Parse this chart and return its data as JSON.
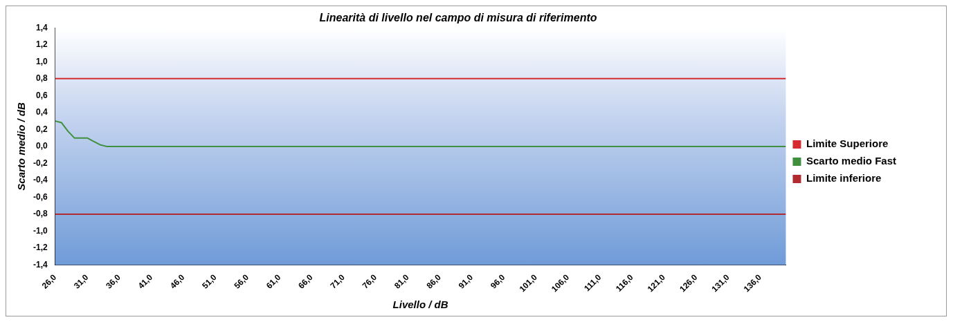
{
  "chart_data": {
    "type": "line",
    "title": "Linearità di livello nel campo di misura di riferimento",
    "xlabel": "Livello / dB",
    "ylabel": "Scarto medio / dB",
    "xlim": [
      26,
      140
    ],
    "xticks": [
      {
        "value": 26,
        "label": "26,0"
      },
      {
        "value": 31,
        "label": "31,0"
      },
      {
        "value": 36,
        "label": "36,0"
      },
      {
        "value": 41,
        "label": "41,0"
      },
      {
        "value": 46,
        "label": "46,0"
      },
      {
        "value": 51,
        "label": "51,0"
      },
      {
        "value": 56,
        "label": "56,0"
      },
      {
        "value": 61,
        "label": "61,0"
      },
      {
        "value": 66,
        "label": "66,0"
      },
      {
        "value": 71,
        "label": "71,0"
      },
      {
        "value": 76,
        "label": "76,0"
      },
      {
        "value": 81,
        "label": "81,0"
      },
      {
        "value": 86,
        "label": "86,0"
      },
      {
        "value": 91,
        "label": "91,0"
      },
      {
        "value": 96,
        "label": "96,0"
      },
      {
        "value": 101,
        "label": "101,0"
      },
      {
        "value": 106,
        "label": "106,0"
      },
      {
        "value": 111,
        "label": "111,0"
      },
      {
        "value": 116,
        "label": "116,0"
      },
      {
        "value": 121,
        "label": "121,0"
      },
      {
        "value": 126,
        "label": "126,0"
      },
      {
        "value": 131,
        "label": "131,0"
      },
      {
        "value": 136,
        "label": "136,0"
      }
    ],
    "ylim": [
      -1.4,
      1.4
    ],
    "yticks": [
      {
        "value": -1.4,
        "label": "-1,4"
      },
      {
        "value": -1.2,
        "label": "-1,2"
      },
      {
        "value": -1.0,
        "label": "-1,0"
      },
      {
        "value": -0.8,
        "label": "-0,8"
      },
      {
        "value": -0.6,
        "label": "-0,6"
      },
      {
        "value": -0.4,
        "label": "-0,4"
      },
      {
        "value": -0.2,
        "label": "-0,2"
      },
      {
        "value": 0,
        "label": "0,0"
      },
      {
        "value": 0.2,
        "label": "0,2"
      },
      {
        "value": 0.4,
        "label": "0,4"
      },
      {
        "value": 0.6,
        "label": "0,6"
      },
      {
        "value": 0.8,
        "label": "0,8"
      },
      {
        "value": 1.0,
        "label": "1,0"
      },
      {
        "value": 1.2,
        "label": "1,2"
      },
      {
        "value": 1.4,
        "label": "1,4"
      }
    ],
    "series": [
      {
        "name": "Limite Superiore",
        "color": "#d42a30",
        "x": [
          26,
          140
        ],
        "values": [
          0.8,
          0.8
        ]
      },
      {
        "name": "Scarto medio Fast",
        "color": "#3f8f3f",
        "x": [
          26,
          27,
          28,
          29,
          30,
          31,
          32,
          33,
          34,
          140
        ],
        "values": [
          0.3,
          0.28,
          0.18,
          0.1,
          0.1,
          0.1,
          0.06,
          0.02,
          0,
          0
        ]
      },
      {
        "name": "Limite inferiore",
        "color": "#b02a30",
        "x": [
          26,
          140
        ],
        "values": [
          -0.8,
          -0.8
        ]
      }
    ],
    "legend": "right",
    "marker": "none",
    "line_style": "solid"
  }
}
